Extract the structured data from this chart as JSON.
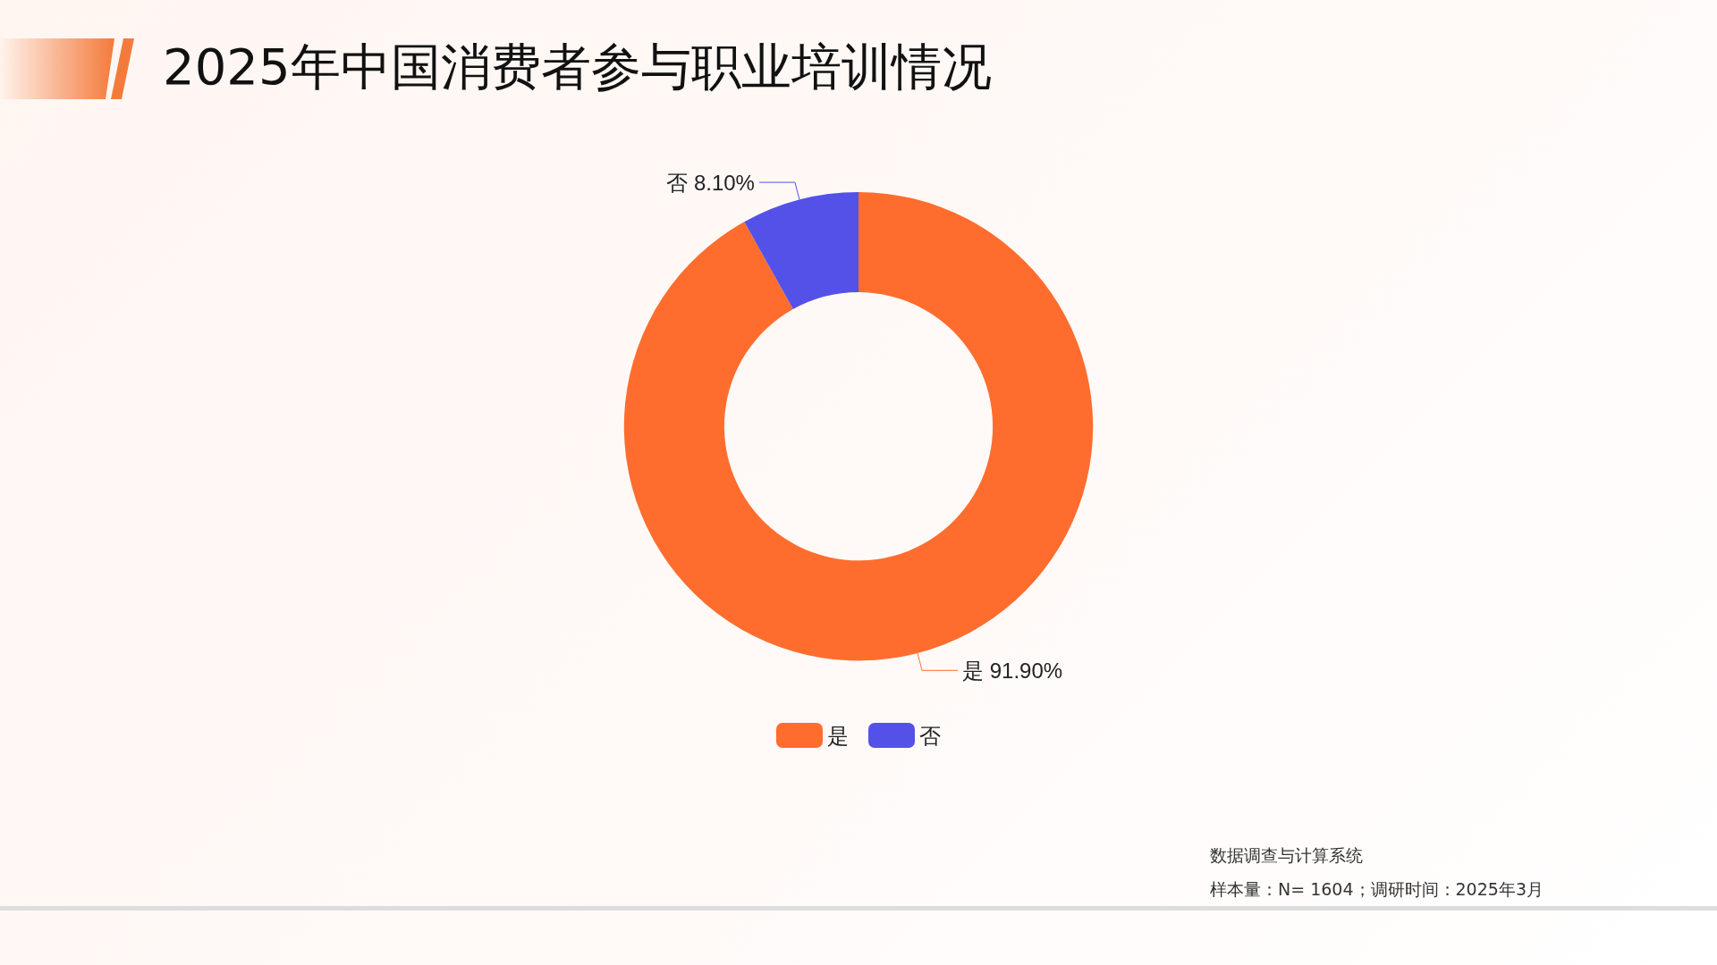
{
  "chart_data": {
    "type": "donut",
    "title": "2025年中国消费者参与职业培训情况",
    "categories": [
      "是",
      "否"
    ],
    "values": [
      91.9,
      8.1
    ],
    "colors": [
      "#ff6d2e",
      "#5451e8"
    ],
    "value_labels": [
      "91.90%",
      "8.10%"
    ],
    "legend": "bottom",
    "annotations": [
      "数据调查与计算系统",
      "样本量：N= 1604；调研时间：2025年3月"
    ]
  }
}
